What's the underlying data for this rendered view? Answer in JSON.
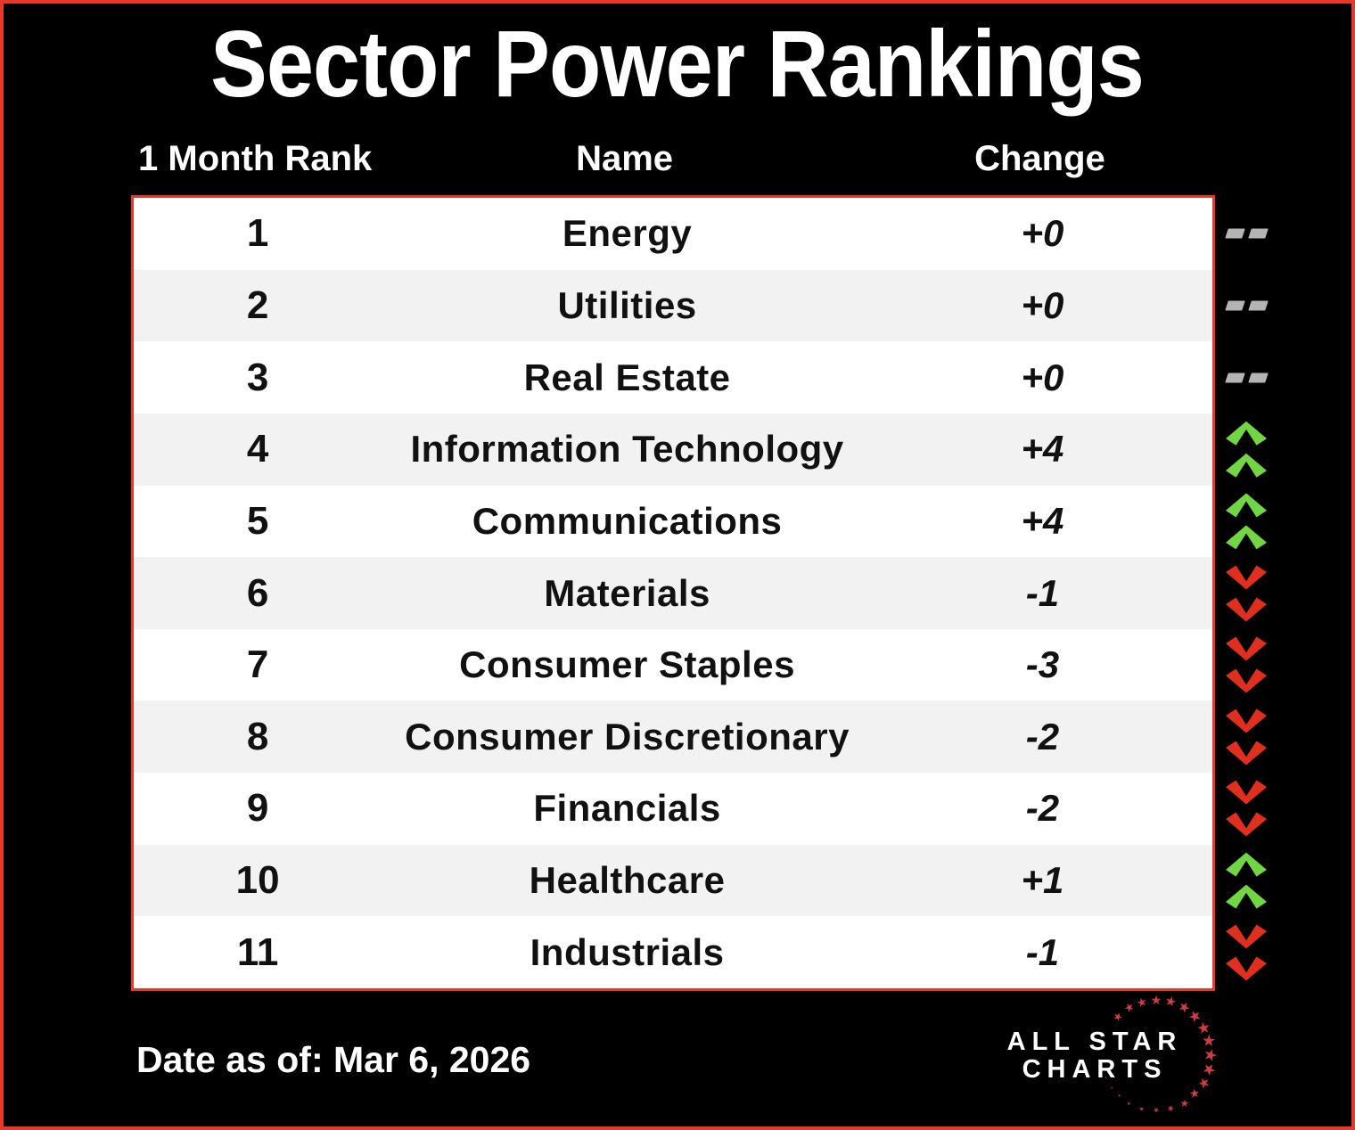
{
  "chart_data": {
    "type": "table",
    "title": "Sector Power Rankings",
    "columns": [
      "1 Month Rank",
      "Name",
      "Change"
    ],
    "rows": [
      {
        "rank": "1",
        "name": "Energy",
        "change": "+0",
        "direction": "flat"
      },
      {
        "rank": "2",
        "name": "Utilities",
        "change": "+0",
        "direction": "flat"
      },
      {
        "rank": "3",
        "name": "Real Estate",
        "change": "+0",
        "direction": "flat"
      },
      {
        "rank": "4",
        "name": "Information Technology",
        "change": "+4",
        "direction": "up"
      },
      {
        "rank": "5",
        "name": "Communications",
        "change": "+4",
        "direction": "up"
      },
      {
        "rank": "6",
        "name": "Materials",
        "change": "-1",
        "direction": "down"
      },
      {
        "rank": "7",
        "name": "Consumer Staples",
        "change": "-3",
        "direction": "down"
      },
      {
        "rank": "8",
        "name": "Consumer Discretionary",
        "change": "-2",
        "direction": "down"
      },
      {
        "rank": "9",
        "name": "Financials",
        "change": "-2",
        "direction": "down"
      },
      {
        "rank": "10",
        "name": "Healthcare",
        "change": "+1",
        "direction": "up"
      },
      {
        "rank": "11",
        "name": "Industrials",
        "change": "-1",
        "direction": "down"
      }
    ]
  },
  "footer": {
    "date": "Date as of: Mar 6, 2026"
  },
  "logo": {
    "line1": "ALL STAR",
    "line2": "CHARTS",
    "star_glyph": "★"
  },
  "colors": {
    "background": "#000000",
    "accent_red": "#e8382a",
    "up_green": "#72d543",
    "down_red": "#e0301d",
    "flat_gray": "#b4b4b4",
    "row_alt_bg": "#f2f2f2",
    "star_red": "#d23a46",
    "text_light": "#ffffff",
    "text_dark": "#111111"
  }
}
